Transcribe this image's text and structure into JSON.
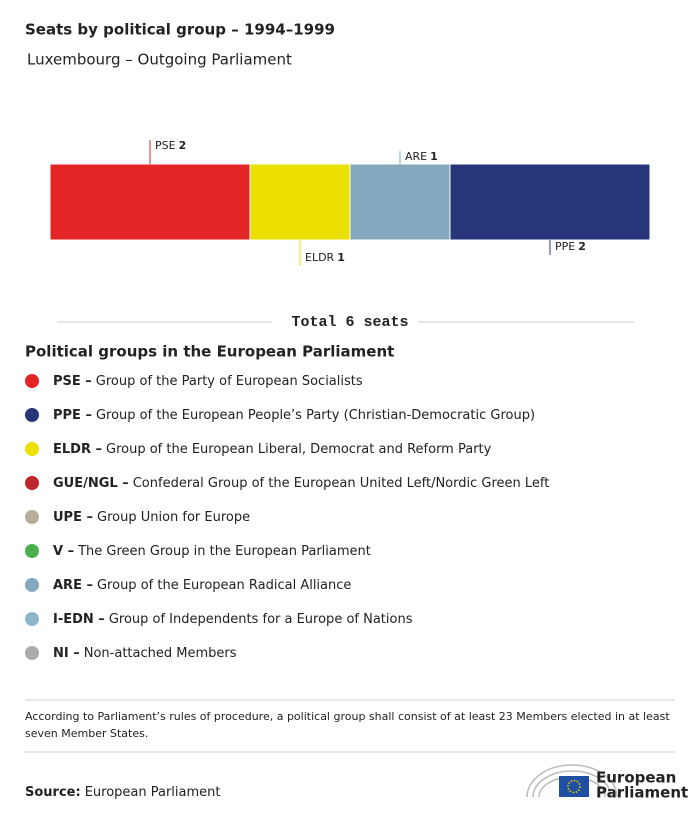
{
  "chart_data": {
    "type": "stacked-bar",
    "title": "Seats by political group – 1994–1999",
    "subtitle": "Luxembourg – Outgoing Parliament",
    "series": [
      {
        "name": "PSE",
        "color": "#e42526",
        "values": [
          2
        ]
      },
      {
        "name": "ELDR",
        "color": "#ebe000",
        "values": [
          1
        ]
      },
      {
        "name": "ARE",
        "color": "#84a9be",
        "values": [
          1
        ]
      },
      {
        "name": "PPE",
        "color": "#27357b",
        "values": [
          2
        ]
      }
    ],
    "total": "Total 6 seats"
  },
  "legend": {
    "title": "Political groups in the European Parliament",
    "items": [
      {
        "label": "PSE –",
        "text": "Group of the Party of European Socialists",
        "color": "#e42526"
      },
      {
        "label": "PPE –",
        "text": "Group of the European People’s Party (Christian-Democratic Group)",
        "color": "#27357b"
      },
      {
        "label": "ELDR –",
        "text": "Group of the European Liberal, Democrat and Reform Party",
        "color": "#ebe000"
      },
      {
        "label": "GUE/NGL –",
        "text": "Confederal Group of the European United Left/Nordic Green Left",
        "color": "#c0272d"
      },
      {
        "label": "UPE –",
        "text": "Group Union for Europe",
        "color": "#b6ad9c"
      },
      {
        "label": "V –",
        "text": "The Green Group in the European Parliament",
        "color": "#4cae4c"
      },
      {
        "label": "ARE –",
        "text": "Group of the European Radical Alliance",
        "color": "#84a9be"
      },
      {
        "label": "I-EDN –",
        "text": "Group of Independents for a Europe of Nations",
        "color": "#8fb5c9"
      },
      {
        "label": "NI –",
        "text": "Non-attached Members",
        "color": "#a9a9a9"
      }
    ]
  },
  "footnote": [
    "According to Parliament’s rules of procedure, a political group shall consist of at least 23 Members elected in at least",
    "seven Member States."
  ],
  "source": {
    "label": "Source:",
    "text": "European Parliament"
  },
  "logo": [
    "European",
    "Parliament"
  ]
}
